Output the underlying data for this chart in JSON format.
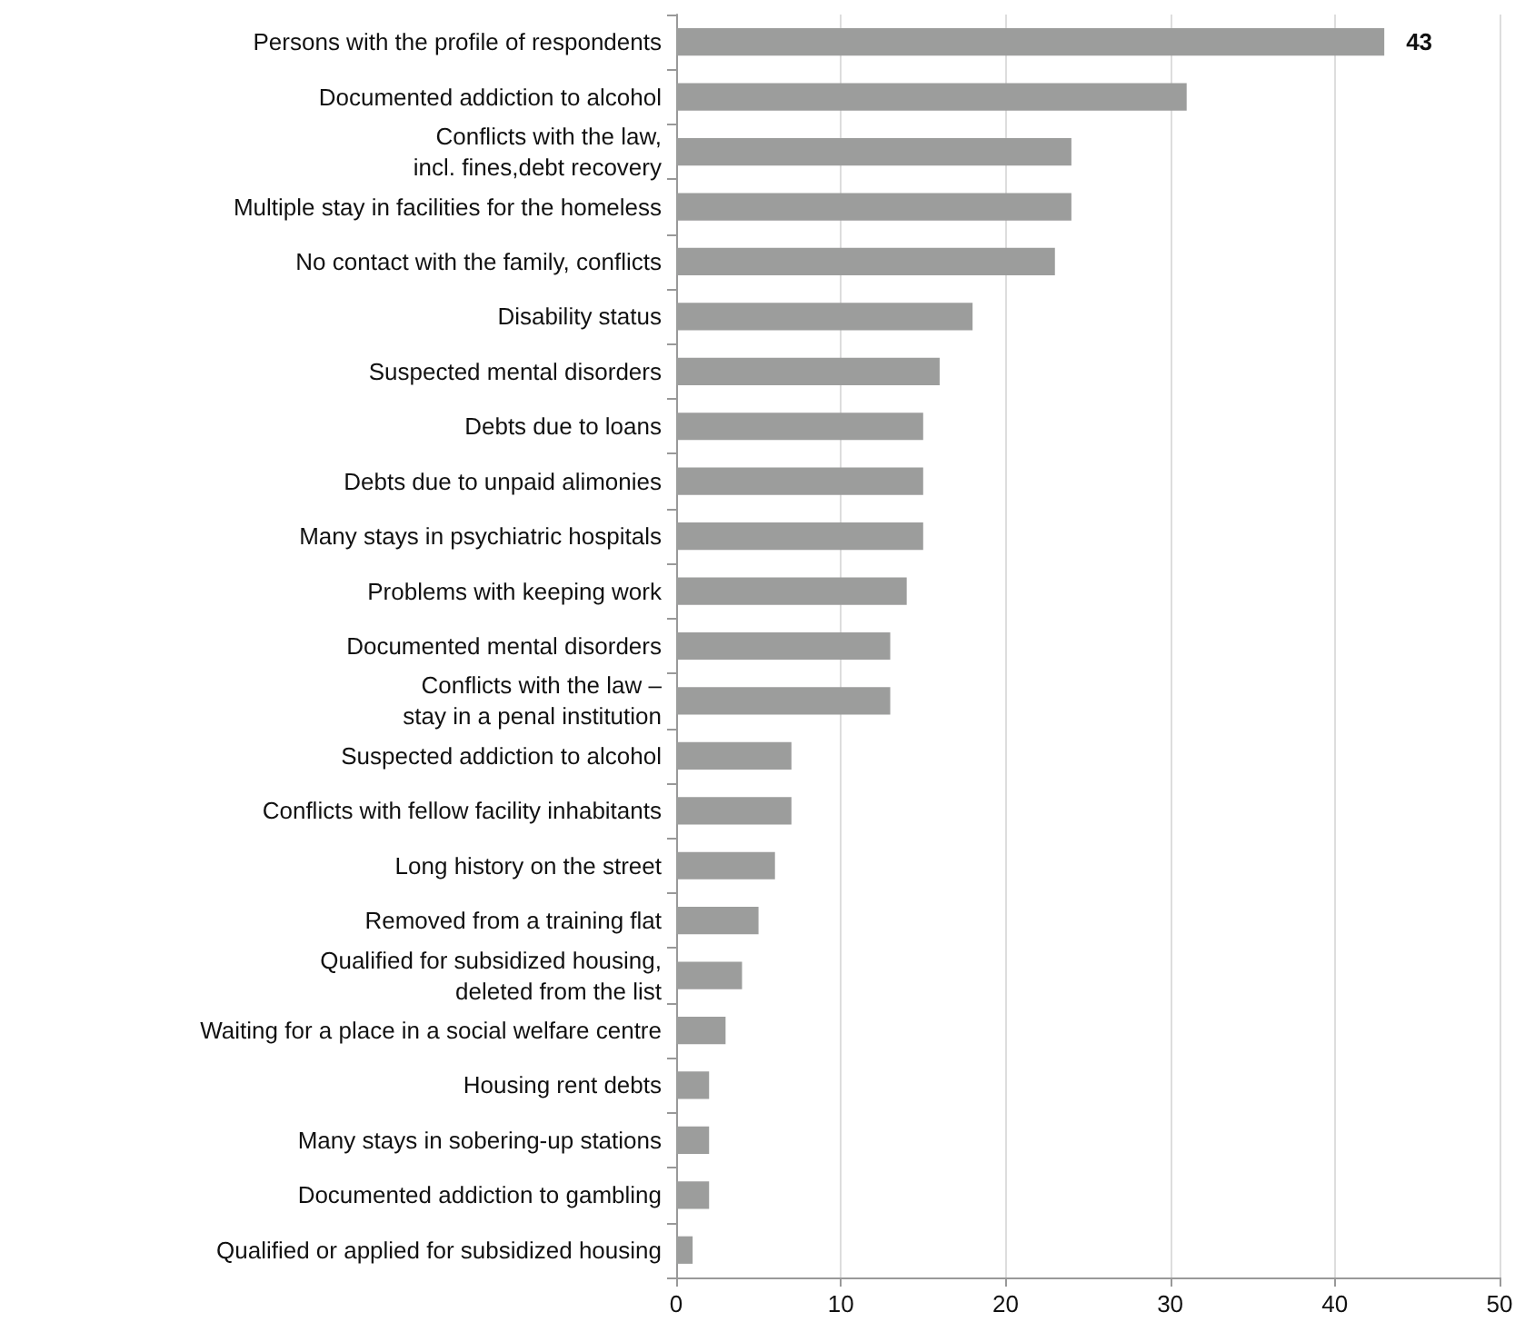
{
  "chart_data": {
    "type": "bar",
    "orientation": "horizontal",
    "categories": [
      "Persons with the profile of respondents",
      "Documented addiction to alcohol",
      "Conflicts with the law,\nincl. fines,debt recovery",
      "Multiple stay in facilities for the homeless",
      "No contact with the family, conflicts",
      "Disability status",
      "Suspected mental disorders",
      "Debts due to loans",
      "Debts due to unpaid alimonies",
      "Many stays in psychiatric hospitals",
      "Problems with keeping work",
      "Documented mental disorders",
      "Conflicts with the law –\nstay in a penal institution",
      "Suspected addiction to alcohol",
      "Conflicts with fellow facility inhabitants",
      "Long history on the street",
      "Removed from a training flat",
      "Qualified for subsidized housing,\ndeleted from the list",
      "Waiting for a place in a social welfare centre",
      "Housing rent debts",
      "Many stays in sobering-up stations",
      "Documented addiction to gambling",
      "Qualified or applied for subsidized housing"
    ],
    "values": [
      43,
      31,
      24,
      24,
      23,
      18,
      16,
      15,
      15,
      15,
      14,
      13,
      13,
      7,
      7,
      6,
      5,
      4,
      3,
      2,
      2,
      2,
      1
    ],
    "value_labels": [
      "43",
      null,
      null,
      null,
      null,
      null,
      null,
      null,
      null,
      null,
      null,
      null,
      null,
      null,
      null,
      null,
      null,
      null,
      null,
      null,
      null,
      null,
      null
    ],
    "color": "#9c9d9c",
    "xlim": [
      0,
      50
    ],
    "xticks": [
      0,
      10,
      20,
      30,
      40,
      50
    ],
    "grid": "x"
  }
}
